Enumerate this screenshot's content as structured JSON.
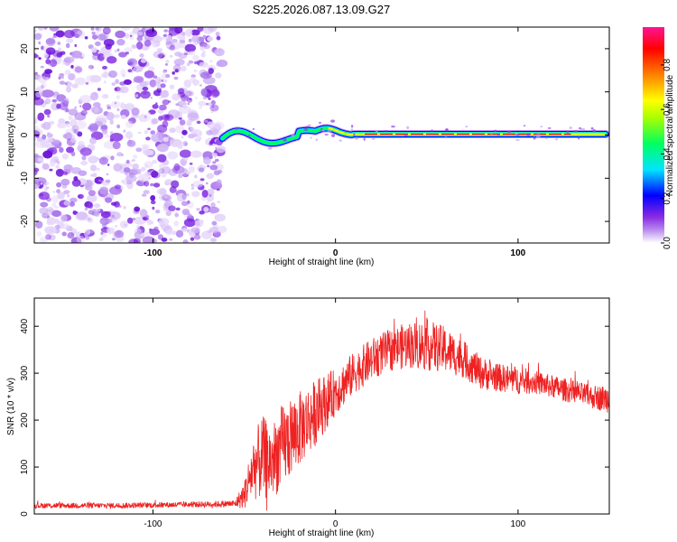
{
  "title": "S225.2026.087.13.09.G27",
  "chart_data": [
    {
      "type": "heatmap",
      "name": "spectrogram",
      "xlabel": "Height of straight line (km)",
      "ylabel": "Frequency (Hz)",
      "xlim": [
        -165,
        150
      ],
      "ylim": [
        -25,
        25
      ],
      "xticks": [
        -100,
        0,
        100
      ],
      "xtick_labels": [
        "-100",
        "0",
        "100"
      ],
      "yticks": [
        -20,
        -10,
        0,
        10,
        20
      ],
      "ytick_labels": [
        "-20",
        "-10",
        "0",
        "10",
        "20"
      ],
      "noise_region_x": [
        -165,
        -62
      ],
      "signal_region_x": [
        -62,
        148
      ],
      "colorbar": {
        "label": "Normalized spectral amplitude",
        "range": [
          0,
          0.97
        ],
        "ticks": [
          0.0,
          0.2,
          0.4,
          0.6,
          0.8
        ],
        "tick_labels": [
          "0.0",
          "0.2",
          "0.4",
          "0.6",
          "0.8"
        ],
        "colors": [
          "#ffffff",
          "#8a2be2",
          "#0000ff",
          "#00e5ff",
          "#00ff00",
          "#ffff00",
          "#ff8000",
          "#ff0000",
          "#ff1493"
        ]
      }
    },
    {
      "type": "line",
      "name": "snr",
      "xlabel": "Height of straight line (km)",
      "ylabel": "SNR (10 * v/v)",
      "xlim": [
        -165,
        150
      ],
      "ylim": [
        0,
        460
      ],
      "xticks": [
        -100,
        0,
        100
      ],
      "xtick_labels": [
        "-100",
        "0",
        "100"
      ],
      "yticks": [
        0,
        100,
        200,
        300,
        400
      ],
      "ytick_labels": [
        "0",
        "100",
        "200",
        "300",
        "400"
      ],
      "color": "#ee2222",
      "envelope": {
        "x": [
          -165,
          -120,
          -80,
          -55,
          -50,
          -45,
          -40,
          -35,
          -30,
          -20,
          -10,
          0,
          10,
          20,
          30,
          40,
          50,
          60,
          70,
          80,
          90,
          100,
          110,
          120,
          130,
          140,
          150
        ],
        "mean": [
          18,
          18,
          20,
          22,
          40,
          100,
          120,
          110,
          140,
          180,
          220,
          260,
          300,
          330,
          350,
          360,
          360,
          350,
          330,
          300,
          290,
          285,
          280,
          270,
          260,
          250,
          245
        ],
        "spread": [
          6,
          6,
          6,
          8,
          30,
          70,
          90,
          80,
          90,
          80,
          70,
          50,
          45,
          45,
          45,
          50,
          55,
          50,
          40,
          35,
          30,
          30,
          25,
          25,
          25,
          25,
          30
        ]
      }
    }
  ]
}
